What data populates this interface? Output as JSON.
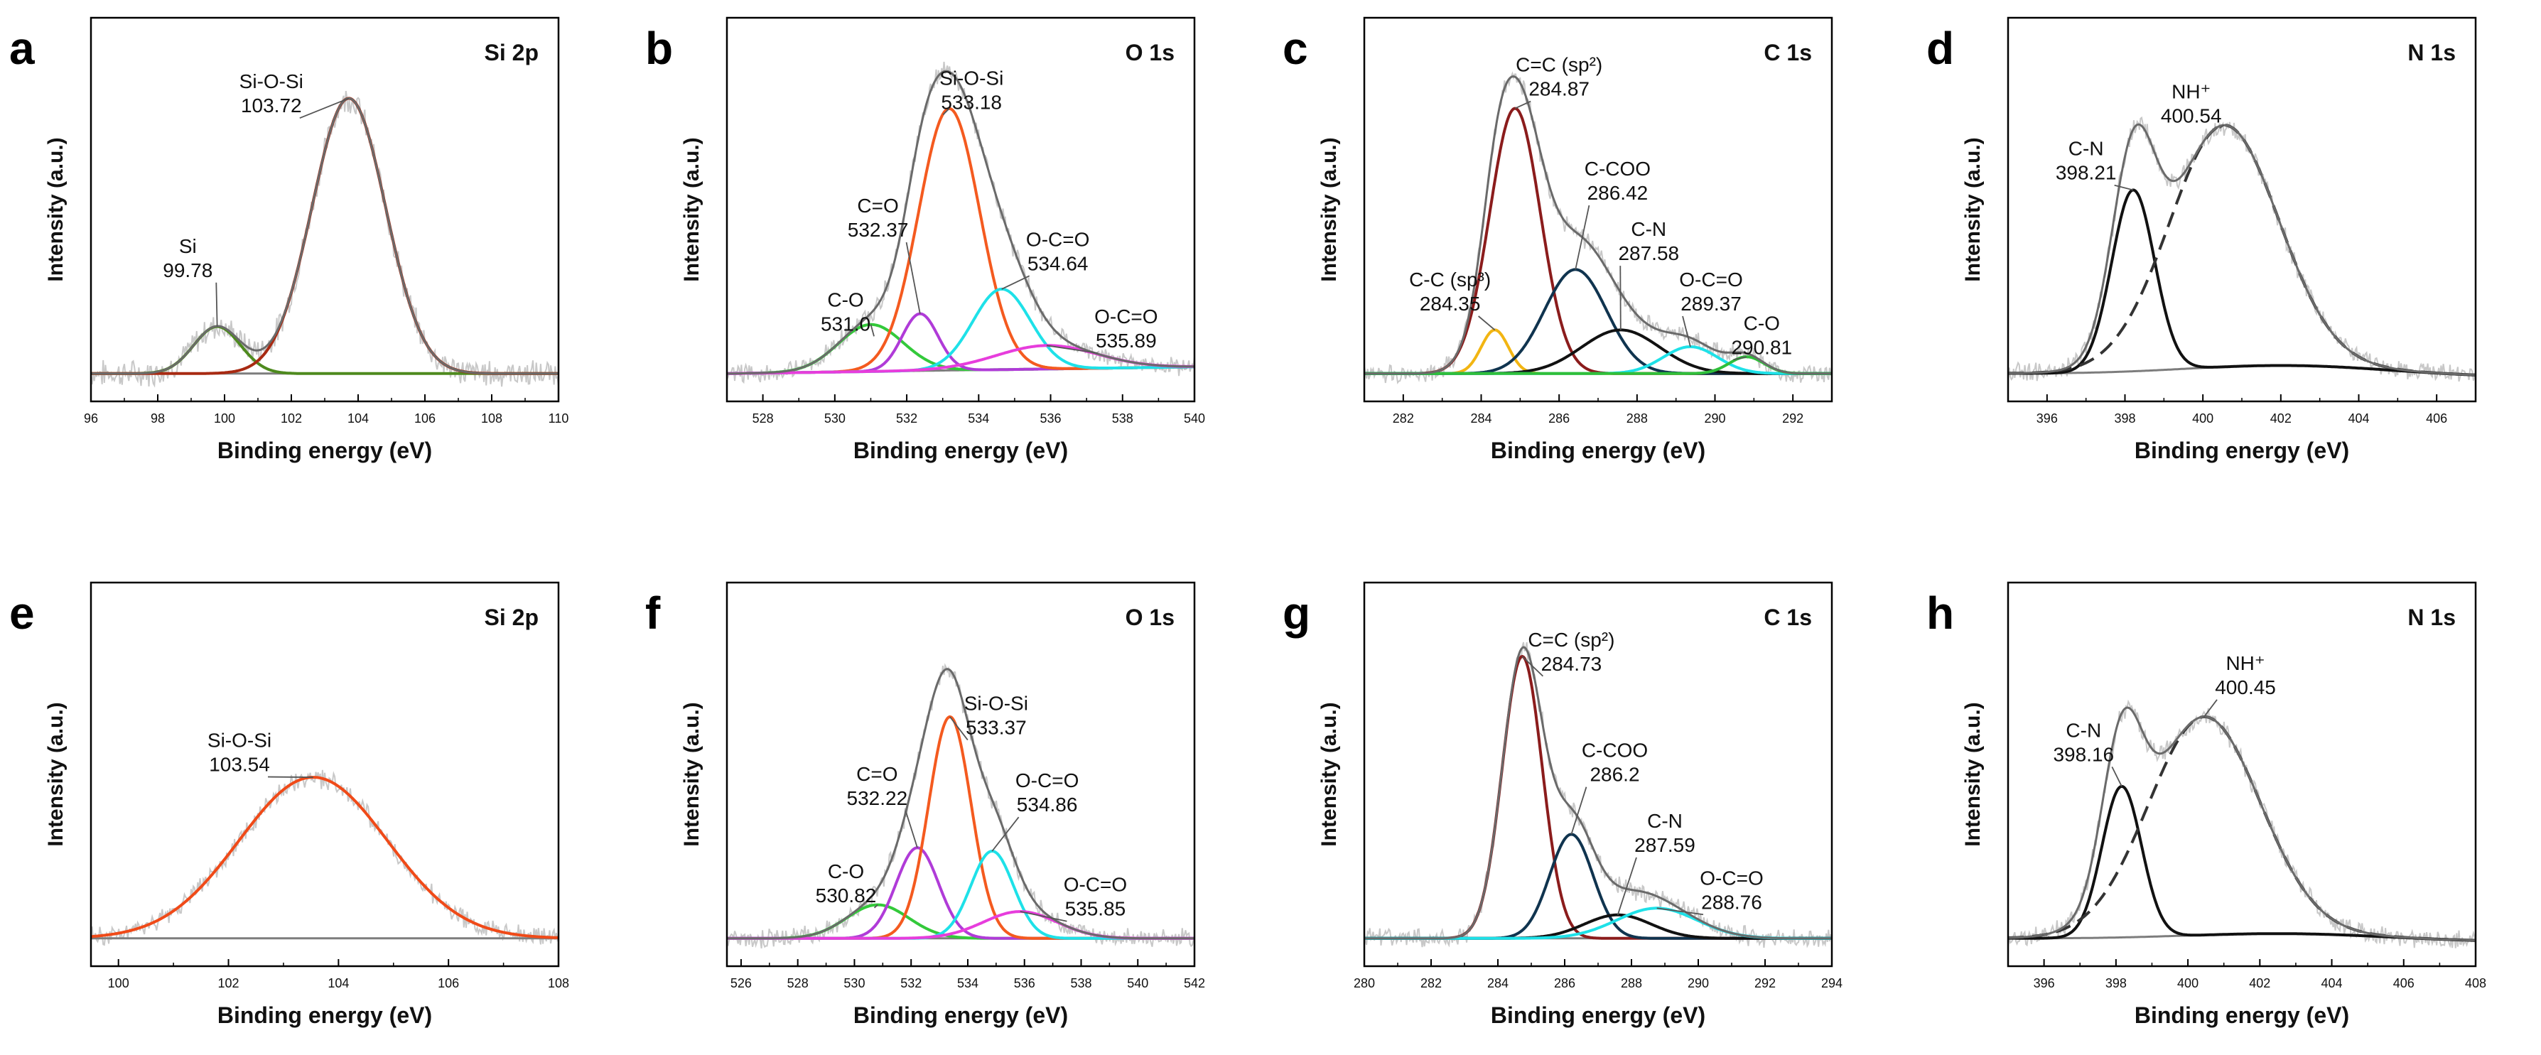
{
  "chart_data": [
    {
      "id": "a",
      "panel_label": "a",
      "type": "line",
      "title": "Si 2p",
      "xlabel": "Binding energy (eV)",
      "ylabel": "Intensity (a.u.)",
      "xlim": [
        96,
        110
      ],
      "x_ticks": [
        96,
        98,
        100,
        102,
        104,
        106,
        108,
        110
      ],
      "ylim": [
        0,
        100
      ],
      "background": {
        "start": 2,
        "end": 2
      },
      "envelope": true,
      "components": [
        {
          "name": "Si",
          "center": 99.78,
          "height": 14,
          "width": 0.7,
          "color": "#4e8a1e",
          "label": [
            "Si",
            "99.78"
          ],
          "label_pos": [
            98.9,
            38
          ]
        },
        {
          "name": "Si-O-Si",
          "center": 103.72,
          "height": 82,
          "width": 1.1,
          "color": "#a82a12",
          "label": [
            "Si-O-Si",
            "103.72"
          ],
          "label_pos": [
            101.4,
            87
          ]
        }
      ]
    },
    {
      "id": "b",
      "panel_label": "b",
      "type": "line",
      "title": "O 1s",
      "xlabel": "Binding energy (eV)",
      "ylabel": "Intensity (a.u.)",
      "xlim": [
        527,
        540
      ],
      "x_ticks": [
        528,
        530,
        532,
        534,
        536,
        538,
        540
      ],
      "ylim": [
        0,
        100
      ],
      "background": {
        "start": 2,
        "end": 4
      },
      "envelope": true,
      "components": [
        {
          "name": "C-O",
          "center": 531.0,
          "height": 14,
          "width": 0.9,
          "color": "#33c93a",
          "label": [
            "C-O",
            "531.0"
          ],
          "label_pos": [
            530.3,
            22
          ]
        },
        {
          "name": "C=O",
          "center": 532.37,
          "height": 17,
          "width": 0.5,
          "color": "#b03bd8",
          "label": [
            "C=O",
            "532.37"
          ],
          "label_pos": [
            531.2,
            50
          ]
        },
        {
          "name": "Si-O-Si",
          "center": 533.18,
          "height": 78,
          "width": 0.85,
          "color": "#f45a1f",
          "label": [
            "Si-O-Si",
            "533.18"
          ],
          "label_pos": [
            533.8,
            88
          ]
        },
        {
          "name": "O-C=O",
          "center": 534.64,
          "height": 24,
          "width": 0.8,
          "color": "#1ee1e8",
          "label": [
            "O-C=O",
            "534.64"
          ],
          "label_pos": [
            536.2,
            40
          ]
        },
        {
          "name": "O-C=O 2",
          "center": 535.89,
          "height": 7,
          "width": 1.4,
          "color": "#e73ddc",
          "label": [
            "O-C=O",
            "535.89"
          ],
          "label_pos": [
            538.1,
            17
          ]
        }
      ]
    },
    {
      "id": "c",
      "panel_label": "c",
      "type": "line",
      "title": "C 1s",
      "xlabel": "Binding energy (eV)",
      "ylabel": "Intensity (a.u.)",
      "xlim": [
        281,
        293
      ],
      "x_ticks": [
        282,
        284,
        286,
        288,
        290,
        292
      ],
      "ylim": [
        0,
        100
      ],
      "background": {
        "start": 2,
        "end": 2
      },
      "envelope": true,
      "components": [
        {
          "name": "C-C (sp3)",
          "center": 284.35,
          "height": 13,
          "width": 0.35,
          "color": "#f2b512",
          "label": [
            "C-C (sp³)",
            "284.35"
          ],
          "label_pos": [
            283.2,
            28
          ]
        },
        {
          "name": "C=C (sp2)",
          "center": 284.87,
          "height": 79,
          "width": 0.65,
          "color": "#8b1c1c",
          "label": [
            "C=C (sp²)",
            "284.87"
          ],
          "label_pos": [
            286.0,
            92
          ]
        },
        {
          "name": "C-COO",
          "center": 286.42,
          "height": 31,
          "width": 0.8,
          "color": "#10344f",
          "label": [
            "C-COO",
            "286.42"
          ],
          "label_pos": [
            287.5,
            61
          ]
        },
        {
          "name": "C-N",
          "center": 287.58,
          "height": 13,
          "width": 1.0,
          "color": "#111111",
          "label": [
            "C-N",
            "287.58"
          ],
          "label_pos": [
            288.3,
            43
          ]
        },
        {
          "name": "O-C=O",
          "center": 289.37,
          "height": 8,
          "width": 0.7,
          "color": "#1ee1e8",
          "label": [
            "O-C=O",
            "289.37"
          ],
          "label_pos": [
            289.9,
            28
          ]
        },
        {
          "name": "C-O",
          "center": 290.81,
          "height": 5,
          "width": 0.45,
          "color": "#2fbf3a",
          "label": [
            "C-O",
            "290.81"
          ],
          "label_pos": [
            291.2,
            15
          ]
        }
      ]
    },
    {
      "id": "d",
      "panel_label": "d",
      "type": "line",
      "title": "N 1s",
      "xlabel": "Binding energy (eV)",
      "ylabel": "Intensity (a.u.)",
      "xlim": [
        395,
        407
      ],
      "x_ticks": [
        396,
        398,
        400,
        402,
        404,
        406
      ],
      "ylim": [
        0,
        100
      ],
      "background": {
        "start": 2,
        "end": 1,
        "bump": 3
      },
      "envelope": true,
      "components": [
        {
          "name": "C-N",
          "center": 398.21,
          "height": 54,
          "width": 0.55,
          "color": "#111111",
          "label": [
            "C-N",
            "398.21"
          ],
          "label_pos": [
            397.0,
            67
          ]
        },
        {
          "name": "NH+",
          "center": 400.54,
          "height": 72,
          "width": 1.4,
          "color": "#333333",
          "dashed": true,
          "label": [
            "NH⁺",
            "400.54"
          ],
          "label_pos": [
            399.7,
            84
          ]
        }
      ]
    },
    {
      "id": "e",
      "panel_label": "e",
      "type": "line",
      "title": "Si 2p",
      "xlabel": "Binding energy (eV)",
      "ylabel": "Intensity (a.u.)",
      "xlim": [
        99.5,
        108
      ],
      "x_ticks": [
        100,
        102,
        104,
        106,
        108
      ],
      "ylim": [
        0,
        100
      ],
      "background": {
        "start": 2,
        "end": 2
      },
      "envelope": false,
      "components": [
        {
          "name": "Si-O-Si",
          "center": 103.54,
          "height": 48,
          "width": 1.35,
          "color": "#f04a18",
          "label": [
            "Si-O-Si",
            "103.54"
          ],
          "label_pos": [
            102.2,
            59
          ]
        }
      ]
    },
    {
      "id": "f",
      "panel_label": "f",
      "type": "line",
      "title": "O 1s",
      "xlabel": "Binding energy (eV)",
      "ylabel": "Intensity (a.u.)",
      "xlim": [
        525.5,
        542
      ],
      "x_ticks": [
        526,
        528,
        530,
        532,
        534,
        536,
        538,
        540,
        542
      ],
      "ylim": [
        0,
        100
      ],
      "background": {
        "start": 2,
        "end": 2
      },
      "envelope": true,
      "components": [
        {
          "name": "C-O",
          "center": 530.82,
          "height": 10,
          "width": 1.1,
          "color": "#33c93a",
          "label": [
            "C-O",
            "530.82"
          ],
          "label_pos": [
            529.7,
            20
          ]
        },
        {
          "name": "C=O",
          "center": 532.22,
          "height": 27,
          "width": 0.75,
          "color": "#b03bd8",
          "label": [
            "C=O",
            "532.22"
          ],
          "label_pos": [
            530.8,
            49
          ]
        },
        {
          "name": "Si-O-Si",
          "center": 533.37,
          "height": 66,
          "width": 0.75,
          "color": "#f45a1f",
          "label": [
            "Si-O-Si",
            "533.37"
          ],
          "label_pos": [
            535.0,
            70
          ]
        },
        {
          "name": "O-C=O",
          "center": 534.86,
          "height": 26,
          "width": 0.75,
          "color": "#1ee1e8",
          "label": [
            "O-C=O",
            "534.86"
          ],
          "label_pos": [
            536.8,
            47
          ]
        },
        {
          "name": "O-C=O 2",
          "center": 535.85,
          "height": 8,
          "width": 1.3,
          "color": "#e73ddc",
          "label": [
            "O-C=O",
            "535.85"
          ],
          "label_pos": [
            538.5,
            16
          ]
        }
      ]
    },
    {
      "id": "g",
      "panel_label": "g",
      "type": "line",
      "title": "C 1s",
      "xlabel": "Binding energy (eV)",
      "ylabel": "Intensity (a.u.)",
      "xlim": [
        280,
        294
      ],
      "x_ticks": [
        280,
        282,
        284,
        286,
        288,
        290,
        292,
        294
      ],
      "ylim": [
        0,
        100
      ],
      "background": {
        "start": 2,
        "end": 2
      },
      "envelope": true,
      "components": [
        {
          "name": "C=C (sp2)",
          "center": 284.73,
          "height": 84,
          "width": 0.6,
          "color": "#8b1c1c",
          "label": [
            "C=C (sp²)",
            "284.73"
          ],
          "label_pos": [
            286.2,
            89
          ]
        },
        {
          "name": "C-COO",
          "center": 286.2,
          "height": 31,
          "width": 0.65,
          "color": "#10344f",
          "label": [
            "C-COO",
            "286.2"
          ],
          "label_pos": [
            287.5,
            56
          ]
        },
        {
          "name": "C-N",
          "center": 287.59,
          "height": 7,
          "width": 1.0,
          "color": "#111111",
          "label": [
            "C-N",
            "287.59"
          ],
          "label_pos": [
            289.0,
            35
          ]
        },
        {
          "name": "O-C=O",
          "center": 288.76,
          "height": 9,
          "width": 1.2,
          "color": "#1ee1e8",
          "label": [
            "O-C=O",
            "288.76"
          ],
          "label_pos": [
            291.0,
            18
          ]
        }
      ]
    },
    {
      "id": "h",
      "panel_label": "h",
      "type": "line",
      "title": "N 1s",
      "xlabel": "Binding energy (eV)",
      "ylabel": "Intensity (a.u.)",
      "xlim": [
        395,
        408
      ],
      "x_ticks": [
        396,
        398,
        400,
        402,
        404,
        406,
        408
      ],
      "ylim": [
        0,
        100
      ],
      "background": {
        "start": 2,
        "end": 1,
        "bump": 2
      },
      "envelope": true,
      "components": [
        {
          "name": "C-N",
          "center": 398.16,
          "height": 45,
          "width": 0.55,
          "color": "#111111",
          "label": [
            "C-N",
            "398.16"
          ],
          "label_pos": [
            397.1,
            62
          ]
        },
        {
          "name": "NH+",
          "center": 400.45,
          "height": 65,
          "width": 1.55,
          "color": "#333333",
          "dashed": true,
          "label": [
            "NH⁺",
            "400.45"
          ],
          "label_pos": [
            401.6,
            82
          ]
        }
      ]
    }
  ]
}
